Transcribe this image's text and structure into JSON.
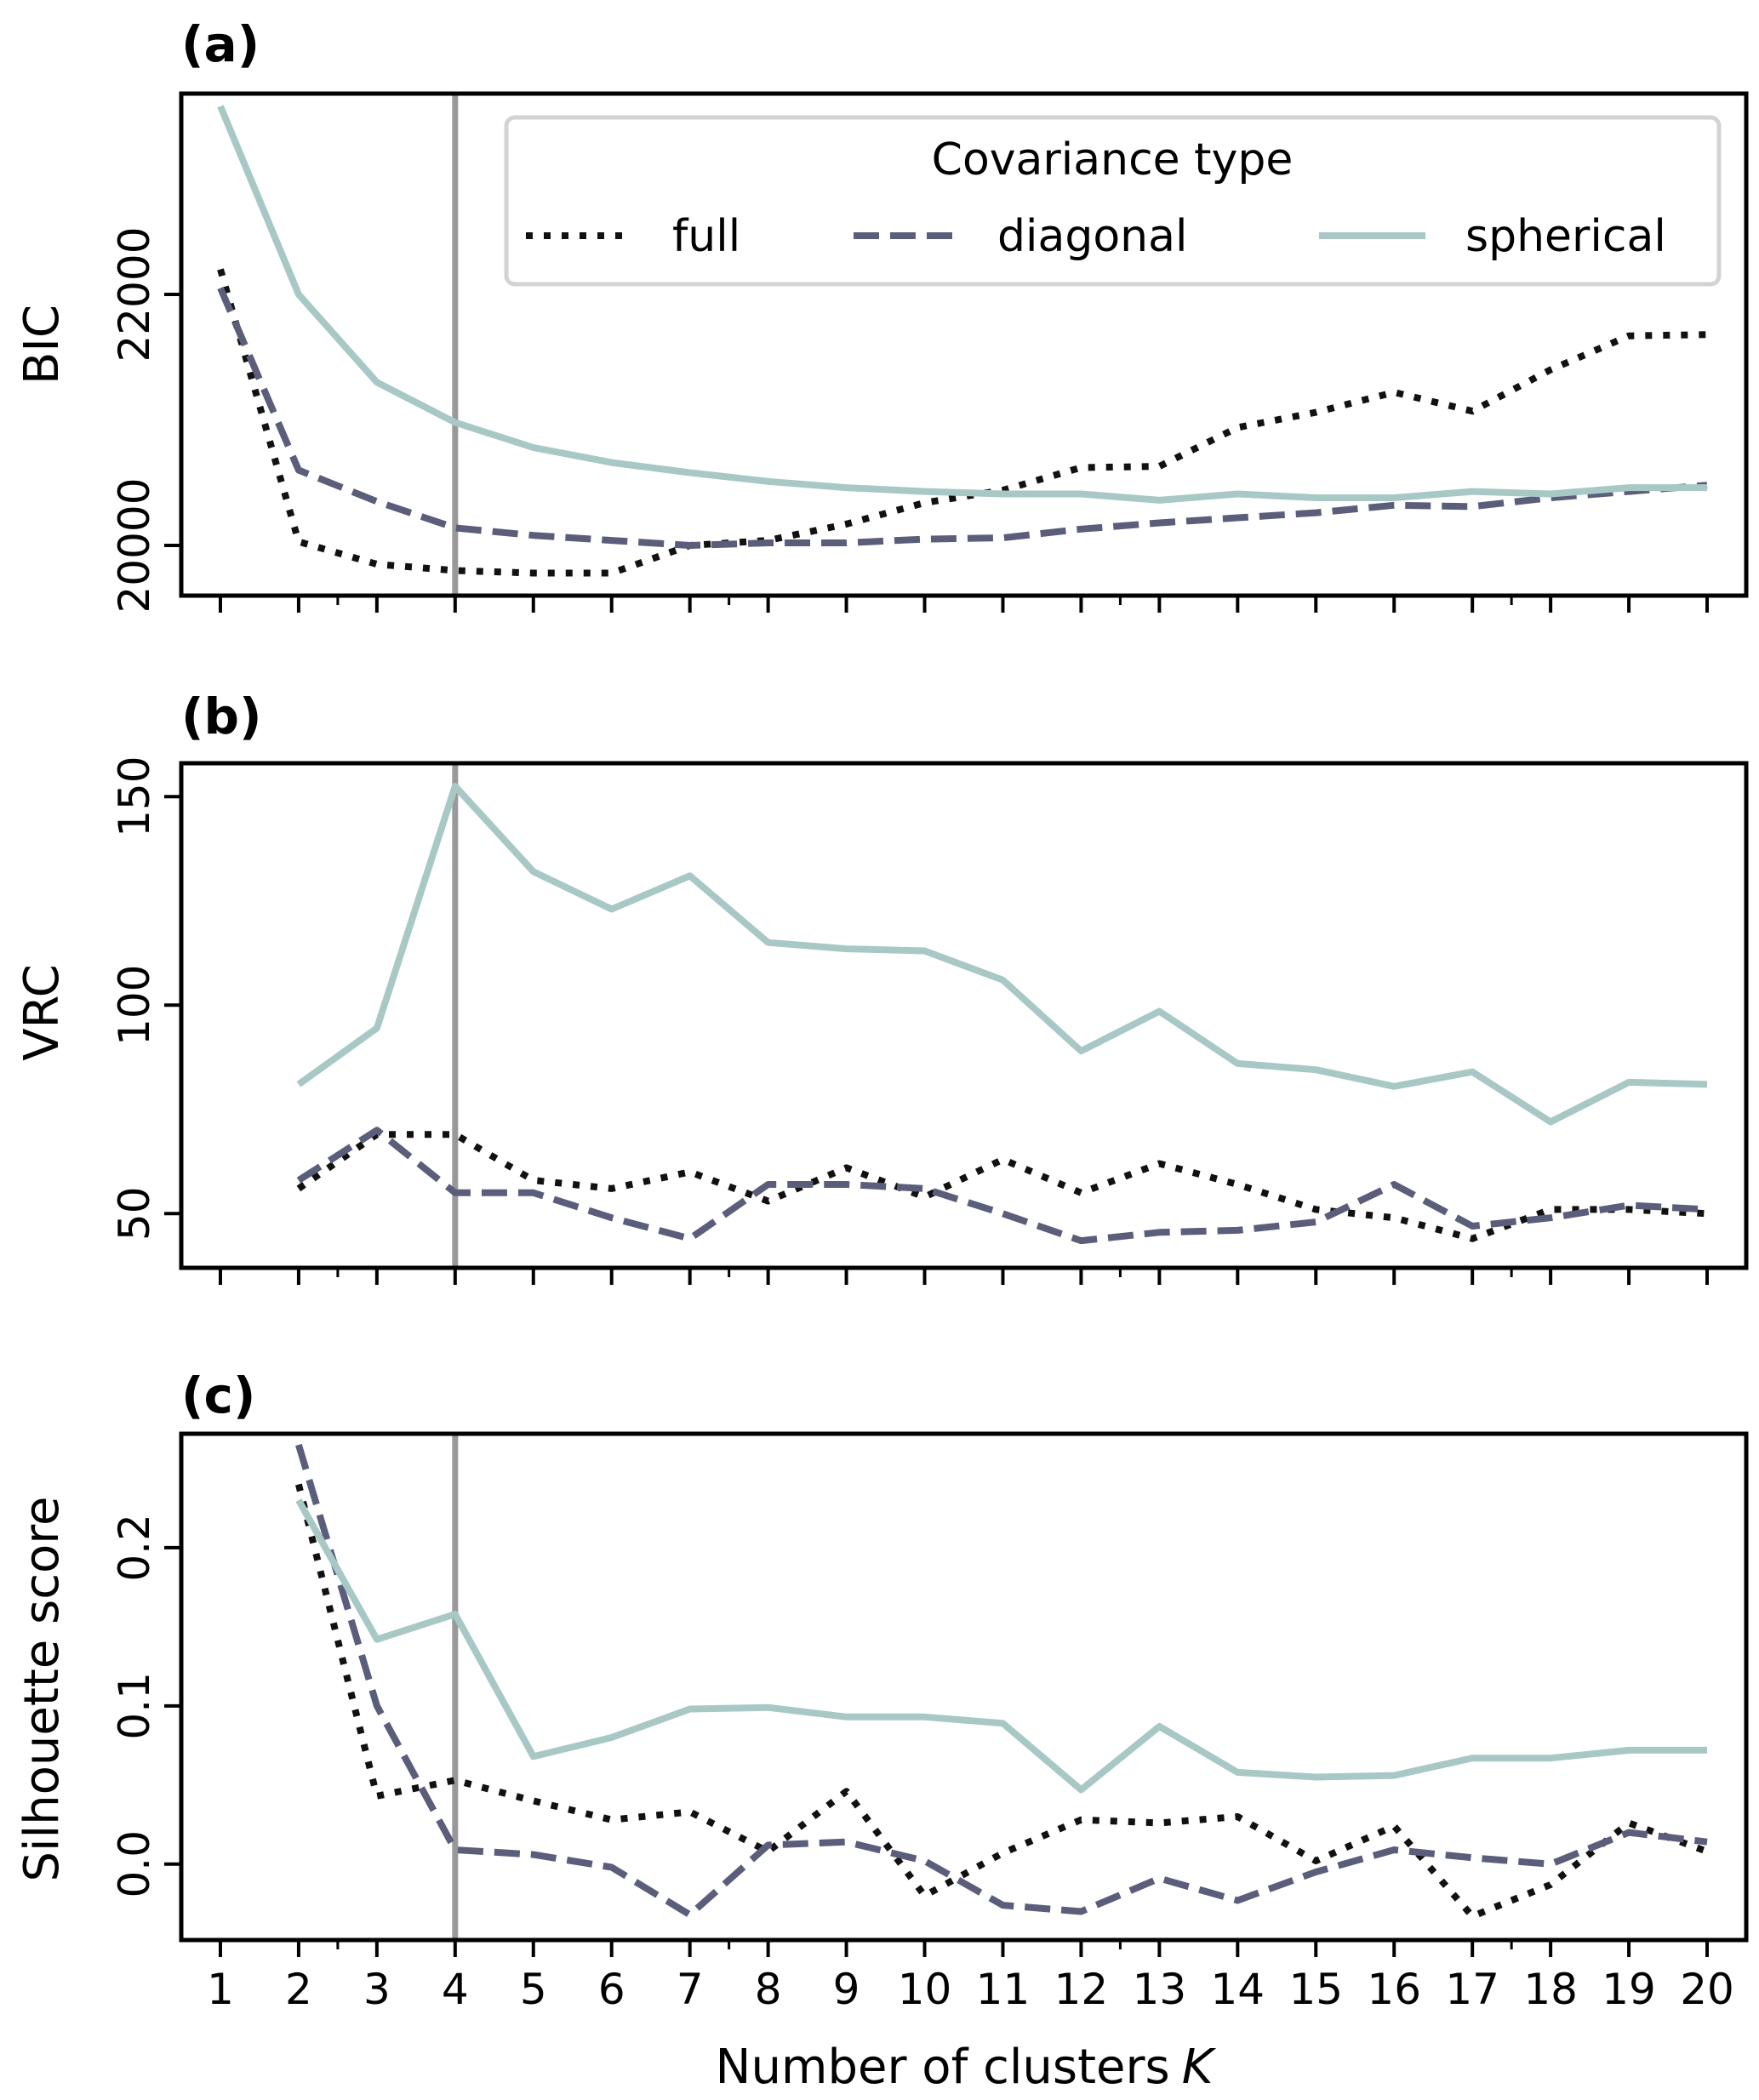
{
  "chart_data": [
    {
      "type": "line",
      "panel_label": "(a)",
      "title": "",
      "xlabel": "",
      "ylabel": "BIC",
      "x": [
        1,
        2,
        3,
        4,
        5,
        6,
        7,
        8,
        9,
        10,
        11,
        12,
        13,
        14,
        15,
        16,
        17,
        18,
        19,
        20
      ],
      "xticks": [
        "1",
        "2",
        "3",
        "4",
        "5",
        "6",
        "7",
        "8",
        "9",
        "10",
        "11",
        "12",
        "13",
        "14",
        "15",
        "16",
        "17",
        "18",
        "19",
        "20"
      ],
      "show_xtick_labels": false,
      "yticks": [
        20000,
        22000
      ],
      "ytick_labels": [
        "20000",
        "22000"
      ],
      "ylim": [
        19600,
        23600
      ],
      "xlim": [
        0.5,
        20.5
      ],
      "vline_x": 4,
      "grid": false,
      "series": [
        {
          "name": "full",
          "style": "dotted",
          "color": "#111111",
          "values": [
            22200,
            20030,
            19850,
            19800,
            19780,
            19780,
            20000,
            20040,
            20170,
            20340,
            20440,
            20620,
            20630,
            20940,
            21060,
            21220,
            21070,
            21400,
            21670,
            21680
          ]
        },
        {
          "name": "diagonal",
          "style": "dashed",
          "color": "#5b5e7a",
          "values": [
            22050,
            20600,
            20350,
            20140,
            20080,
            20040,
            20000,
            20020,
            20020,
            20050,
            20060,
            20130,
            20180,
            20220,
            20260,
            20320,
            20310,
            20380,
            20430,
            20480
          ]
        },
        {
          "name": "spherical",
          "style": "solid",
          "color": "#a8c8c6",
          "values": [
            23500,
            22000,
            21300,
            20980,
            20780,
            20660,
            20580,
            20510,
            20460,
            20430,
            20410,
            20410,
            20360,
            20410,
            20380,
            20380,
            20430,
            20410,
            20460,
            20460
          ]
        }
      ],
      "legend": {
        "title": "Covariance type",
        "entries": [
          "full",
          "diagonal",
          "spherical"
        ],
        "placement": "top-right",
        "ncol": 3
      }
    },
    {
      "type": "line",
      "panel_label": "(b)",
      "title": "",
      "xlabel": "",
      "ylabel": "VRC",
      "x": [
        2,
        3,
        4,
        5,
        6,
        7,
        8,
        9,
        10,
        11,
        12,
        13,
        14,
        15,
        16,
        17,
        18,
        19,
        20
      ],
      "xticks": [
        "1",
        "2",
        "3",
        "4",
        "5",
        "6",
        "7",
        "8",
        "9",
        "10",
        "11",
        "12",
        "13",
        "14",
        "15",
        "16",
        "17",
        "18",
        "19",
        "20"
      ],
      "show_xtick_labels": false,
      "yticks": [
        50,
        100,
        150
      ],
      "ytick_labels": [
        "50",
        "100",
        "150"
      ],
      "ylim": [
        37,
        158
      ],
      "xlim": [
        0.5,
        20.5
      ],
      "vline_x": 4,
      "grid": false,
      "series": [
        {
          "name": "full",
          "style": "dotted",
          "color": "#111111",
          "values": [
            56,
            69,
            69,
            58,
            56,
            60,
            53,
            61,
            54,
            63,
            55,
            62,
            57,
            51,
            49,
            44,
            51,
            51,
            50
          ]
        },
        {
          "name": "diagonal",
          "style": "dashed",
          "color": "#5b5e7a",
          "values": [
            58,
            70,
            55,
            55,
            49,
            44,
            57,
            57,
            56,
            50,
            43.5,
            45.5,
            46,
            48,
            57,
            47,
            49,
            52,
            51
          ]
        },
        {
          "name": "spherical",
          "style": "solid",
          "color": "#a8c8c6",
          "values": [
            81,
            94.5,
            152.5,
            132,
            123,
            131,
            115,
            113.5,
            113,
            106,
            89,
            98.5,
            86,
            84.5,
            80.5,
            84,
            72,
            81.5,
            81
          ]
        }
      ]
    },
    {
      "type": "line",
      "panel_label": "(c)",
      "title": "",
      "xlabel": "Number of clusters K",
      "xlabel_main": "Number of clusters",
      "xlabel_var": "K",
      "ylabel": "Silhouette score",
      "x": [
        2,
        3,
        4,
        5,
        6,
        7,
        8,
        9,
        10,
        11,
        12,
        13,
        14,
        15,
        16,
        17,
        18,
        19,
        20
      ],
      "xticks": [
        "1",
        "2",
        "3",
        "4",
        "5",
        "6",
        "7",
        "8",
        "9",
        "10",
        "11",
        "12",
        "13",
        "14",
        "15",
        "16",
        "17",
        "18",
        "19",
        "20"
      ],
      "show_xtick_labels": true,
      "yticks": [
        0.0,
        0.1,
        0.2
      ],
      "ytick_labels": [
        "0.0",
        "0.1",
        "0.2"
      ],
      "ylim": [
        -0.048,
        0.272
      ],
      "xlim": [
        0.5,
        20.5
      ],
      "vline_x": 4,
      "grid": false,
      "series": [
        {
          "name": "full",
          "style": "dotted",
          "color": "#111111",
          "values": [
            0.24,
            0.043,
            0.053,
            0.04,
            0.028,
            0.033,
            0.008,
            0.046,
            -0.02,
            0.007,
            0.028,
            0.026,
            0.03,
            0.002,
            0.024,
            -0.033,
            -0.013,
            0.026,
            0.008
          ]
        },
        {
          "name": "diagonal",
          "style": "dashed",
          "color": "#5b5e7a",
          "values": [
            0.265,
            0.1,
            0.009,
            0.006,
            -0.002,
            -0.032,
            0.012,
            0.014,
            0.002,
            -0.026,
            -0.03,
            -0.009,
            -0.023,
            -0.005,
            0.009,
            0.004,
            0.0,
            0.02,
            0.014
          ]
        },
        {
          "name": "spherical",
          "style": "solid",
          "color": "#a8c8c6",
          "values": [
            0.23,
            0.142,
            0.158,
            0.068,
            0.08,
            0.098,
            0.099,
            0.093,
            0.093,
            0.089,
            0.047,
            0.087,
            0.058,
            0.055,
            0.056,
            0.067,
            0.067,
            0.072,
            0.072
          ]
        }
      ]
    }
  ]
}
